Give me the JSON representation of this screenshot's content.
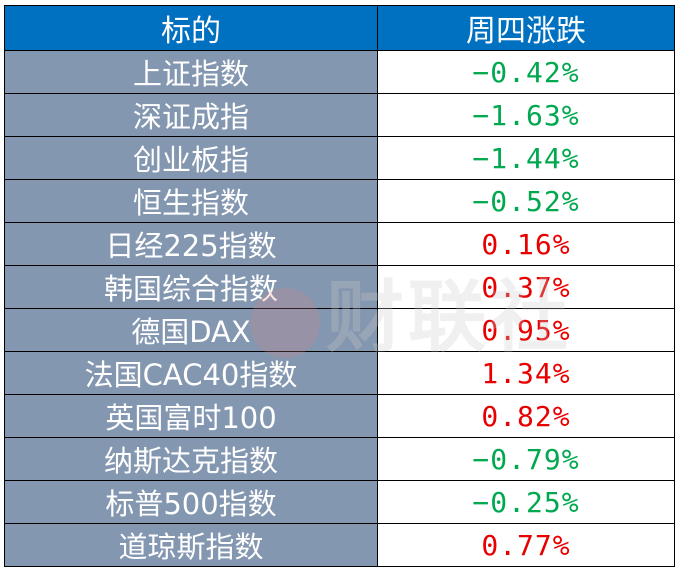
{
  "table": {
    "headers": [
      "标的",
      "周四涨跌"
    ],
    "rows": [
      {
        "name": "上证指数",
        "change": "−0.42%",
        "direction": "down"
      },
      {
        "name": "深证成指",
        "change": "−1.63%",
        "direction": "down"
      },
      {
        "name": "创业板指",
        "change": "−1.44%",
        "direction": "down"
      },
      {
        "name": "恒生指数",
        "change": "−0.52%",
        "direction": "down"
      },
      {
        "name": "日经225指数",
        "change": "0.16%",
        "direction": "up"
      },
      {
        "name": "韩国综合指数",
        "change": "0.37%",
        "direction": "up"
      },
      {
        "name": "德国DAX",
        "change": "0.95%",
        "direction": "up"
      },
      {
        "name": "法国CAC40指数",
        "change": "1.34%",
        "direction": "up"
      },
      {
        "name": "英国富时100",
        "change": "0.82%",
        "direction": "up"
      },
      {
        "name": "纳斯达克指数",
        "change": "−0.79%",
        "direction": "down"
      },
      {
        "name": "标普500指数",
        "change": "−0.25%",
        "direction": "down"
      },
      {
        "name": "道琼斯指数",
        "change": "0.77%",
        "direction": "up"
      }
    ]
  },
  "watermark": {
    "text": "财联社"
  },
  "colors": {
    "header_bg": "#0070c0",
    "name_bg": "#8497b0",
    "up": "#e80000",
    "down": "#00a84f"
  }
}
